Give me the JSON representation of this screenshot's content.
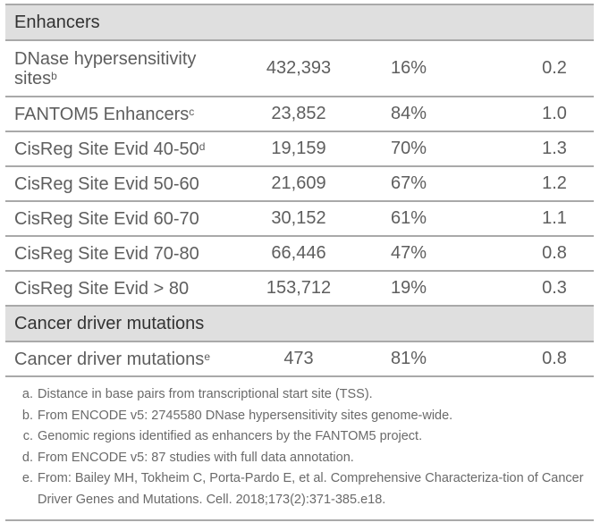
{
  "table": {
    "sections": [
      {
        "title": "Enhancers",
        "rows": [
          {
            "label": "DNase hypersensitivity sites",
            "sup": "b",
            "count": "432,393",
            "percent": "16%",
            "value": "0.2"
          },
          {
            "label": "FANTOM5 Enhancers",
            "sup": "c",
            "count": "23,852",
            "percent": "84%",
            "value": "1.0"
          },
          {
            "label": "CisReg Site Evid 40-50",
            "sup": "d",
            "count": "19,159",
            "percent": "70%",
            "value": "1.3"
          },
          {
            "label": "CisReg Site Evid 50-60",
            "sup": "",
            "count": "21,609",
            "percent": "67%",
            "value": "1.2"
          },
          {
            "label": "CisReg Site Evid 60-70",
            "sup": "",
            "count": "30,152",
            "percent": "61%",
            "value": "1.1"
          },
          {
            "label": "CisReg Site Evid 70-80",
            "sup": "",
            "count": "66,446",
            "percent": "47%",
            "value": "0.8"
          },
          {
            "label": "CisReg Site Evid > 80",
            "sup": "",
            "count": "153,712",
            "percent": "19%",
            "value": "0.3"
          }
        ]
      },
      {
        "title": "Cancer driver mutations",
        "rows": [
          {
            "label": "Cancer driver mutations",
            "sup": "e",
            "count": "473",
            "percent": "81%",
            "value": "0.8"
          }
        ]
      }
    ]
  },
  "footnotes": [
    {
      "mark": "a.",
      "text": "Distance in base pairs from transcriptional start site (TSS)."
    },
    {
      "mark": "b.",
      "text": "From ENCODE v5: 2745580 DNase hypersensitivity sites genome-wide."
    },
    {
      "mark": "c.",
      "text": "Genomic regions identified as enhancers by the FANTOM5 project."
    },
    {
      "mark": "d.",
      "text": "From ENCODE v5: 87 studies with full data annotation."
    },
    {
      "mark": "e.",
      "text": "From: Bailey MH, Tokheim C, Porta-Pardo E, et al. Comprehensive Characteriza-tion of Cancer Driver Genes and Mutations. Cell. 2018;173(2):371-385.e18."
    }
  ]
}
